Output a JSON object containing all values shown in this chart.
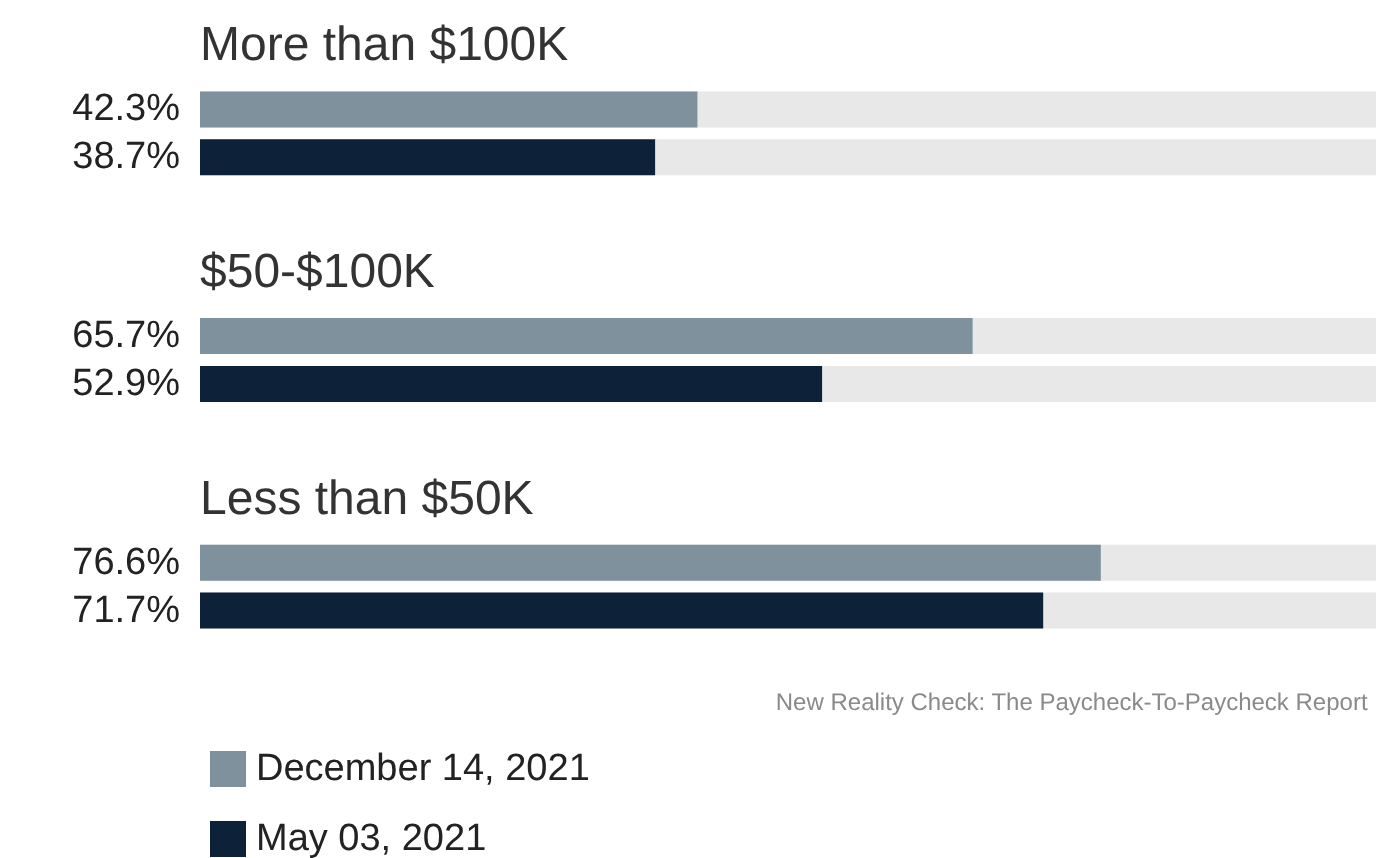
{
  "chart_data": {
    "type": "bar",
    "orientation": "horizontal",
    "categories": [
      "More than $100K",
      "$50-$100K",
      "Less than $50K"
    ],
    "series": [
      {
        "name": "December 14, 2021",
        "color": "#7f919c",
        "values": [
          42.3,
          65.7,
          76.6
        ],
        "value_labels": [
          "42.3%",
          "65.7%",
          "76.6%"
        ]
      },
      {
        "name": "May 03, 2021",
        "color": "#0d2238",
        "values": [
          38.7,
          52.9,
          71.7
        ],
        "value_labels": [
          "38.7%",
          "52.9%",
          "71.7%"
        ]
      }
    ],
    "xlim": [
      0,
      100
    ],
    "legend": "bottom left",
    "annotations": [
      "New Reality Check: The Paycheck-To-Paycheck Report"
    ]
  }
}
